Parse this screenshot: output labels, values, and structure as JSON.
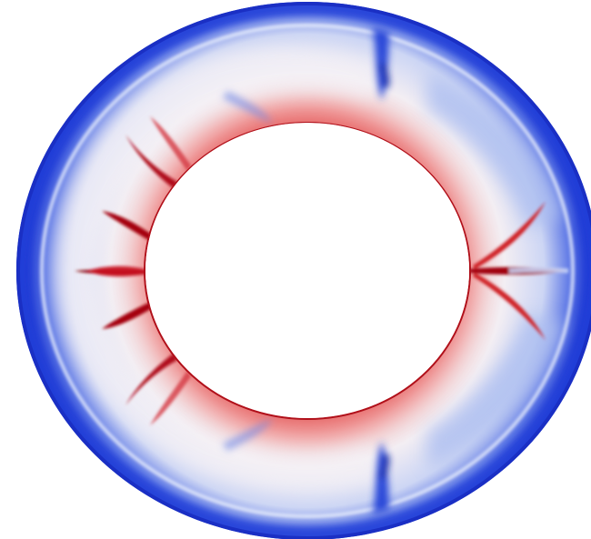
{
  "figure": {
    "kind": "annular convection temperature field",
    "colormap": {
      "hot": "#c00010",
      "warm": "#f07878",
      "neutral": "#f6f3f6",
      "cool": "#9fb4f0",
      "cold": "#1d3ed8",
      "deep_cold": "#0a1aa0"
    },
    "background": "#ffffff"
  }
}
